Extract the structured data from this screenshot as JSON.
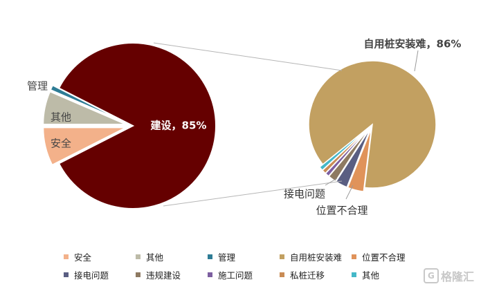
{
  "chart_data": [
    {
      "type": "pie",
      "slices": [
        {
          "label": "建设",
          "value": 85,
          "color": "#650000"
        },
        {
          "label": "安全",
          "value": 7.5,
          "color": "#F3B18A"
        },
        {
          "label": "其他",
          "value": 6.5,
          "color": "#BDBBA8"
        },
        {
          "label": "管理",
          "value": 1,
          "color": "#2E7C95"
        }
      ],
      "data_labels": [
        {
          "slice": "建设",
          "text": "建设，85%"
        },
        {
          "slice": "安全",
          "text": "安全"
        },
        {
          "slice": "其他",
          "text": "其他"
        },
        {
          "slice": "管理",
          "text": "管理"
        }
      ]
    },
    {
      "type": "pie",
      "slices": [
        {
          "label": "自用桩安装难",
          "value": 86,
          "color": "#C2A061"
        },
        {
          "label": "位置不合理",
          "value": 4,
          "color": "#E0935A"
        },
        {
          "label": "接电问题",
          "value": 3,
          "color": "#5A5E82"
        },
        {
          "label": "违规建设",
          "value": 2,
          "color": "#8E7A62"
        },
        {
          "label": "施工问题",
          "value": 1,
          "color": "#7D5FA0"
        },
        {
          "label": "私桩迁移",
          "value": 1,
          "color": "#C98C55"
        },
        {
          "label": "其他",
          "value": 1,
          "color": "#44B8C8"
        }
      ],
      "data_labels": [
        {
          "slice": "自用桩安装难",
          "text": "自用桩安装难，86%"
        },
        {
          "slice": "接电问题",
          "text": "接电问题"
        },
        {
          "slice": "位置不合理",
          "text": "位置不合理"
        }
      ]
    }
  ],
  "legend": [
    [
      {
        "label": "安全",
        "color": "#F3B18A"
      },
      {
        "label": "其他",
        "color": "#BDBBA8"
      },
      {
        "label": "管理",
        "color": "#2E7C95"
      },
      {
        "label": "自用桩安装难",
        "color": "#C2A061"
      },
      {
        "label": "位置不合理",
        "color": "#E0935A"
      }
    ],
    [
      {
        "label": "接电问题",
        "color": "#5A5E82"
      },
      {
        "label": "违规建设",
        "color": "#8E7A62"
      },
      {
        "label": "施工问题",
        "color": "#7D5FA0"
      },
      {
        "label": "私桩迁移",
        "color": "#C98C55"
      },
      {
        "label": "其他",
        "color": "#44B8C8"
      }
    ]
  ],
  "watermark": {
    "icon": "G",
    "text": "格隆汇"
  }
}
